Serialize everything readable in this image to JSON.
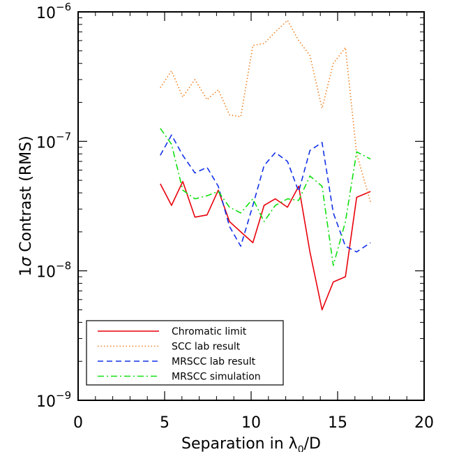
{
  "chart_data": {
    "type": "line",
    "xlabel": "Separation in λ",
    "xlabel_sub": "0",
    "xlabel_suffix": "/D",
    "ylabel_prefix": "1",
    "ylabel_sigma": "σ",
    "ylabel_suffix": " Contrast (RMS)",
    "xlim": [
      0,
      20
    ],
    "ylim": [
      1e-09,
      1e-06
    ],
    "yscale": "log",
    "grid": false,
    "legend_position": "bottom-left",
    "x_ticks": [
      {
        "value": 0,
        "label": "0"
      },
      {
        "value": 5,
        "label": "5"
      },
      {
        "value": 10,
        "label": "10"
      },
      {
        "value": 15,
        "label": "15"
      },
      {
        "value": 20,
        "label": "20"
      }
    ],
    "y_ticks": [
      {
        "value": 1e-09,
        "base": "10",
        "exp": "−9"
      },
      {
        "value": 1e-08,
        "base": "10",
        "exp": "−8"
      },
      {
        "value": 1e-07,
        "base": "10",
        "exp": "−7"
      },
      {
        "value": 1e-06,
        "base": "10",
        "exp": "−6"
      }
    ],
    "series": [
      {
        "name": "Chromatic limit",
        "color": "#e8000b",
        "dash": "solid",
        "x": [
          4.75,
          5.4,
          6.05,
          6.75,
          7.45,
          8.1,
          8.75,
          9.4,
          10.1,
          10.75,
          11.4,
          12.1,
          12.75,
          13.4,
          14.1,
          14.75,
          15.45,
          16.1,
          16.9
        ],
        "y": [
          4.7e-08,
          3.2e-08,
          4.9e-08,
          2.6e-08,
          2.7e-08,
          4.2e-08,
          2.4e-08,
          2e-08,
          1.65e-08,
          3.2e-08,
          3.6e-08,
          3.1e-08,
          4.5e-08,
          1.4e-08,
          5e-09,
          8.2e-09,
          9e-09,
          3.7e-08,
          4.1e-08
        ]
      },
      {
        "name": "SCC lab result",
        "color": "#f08020",
        "dash": "dotted",
        "x": [
          4.75,
          5.4,
          6.05,
          6.75,
          7.45,
          8.1,
          8.75,
          9.4,
          10.1,
          10.75,
          11.4,
          12.1,
          12.75,
          13.4,
          14.1,
          14.75,
          15.45,
          16.1,
          16.9
        ],
        "y": [
          2.6e-07,
          3.5e-07,
          2.2e-07,
          3e-07,
          2.1e-07,
          2.5e-07,
          1.6e-07,
          1.55e-07,
          5.5e-07,
          5.7e-07,
          7e-07,
          8.6e-07,
          6e-07,
          4.6e-07,
          1.8e-07,
          4e-07,
          5.3e-07,
          8e-08,
          3.4e-08
        ]
      },
      {
        "name": "MRSCC lab result",
        "color": "#1030e8",
        "dash": "dashed",
        "x": [
          4.75,
          5.4,
          6.05,
          6.75,
          7.45,
          8.1,
          8.75,
          9.4,
          10.1,
          10.75,
          11.4,
          12.1,
          12.75,
          13.4,
          14.1,
          14.75,
          15.45,
          16.1,
          16.9
        ],
        "y": [
          7.8e-08,
          1.12e-07,
          7.8e-08,
          5.7e-08,
          6.3e-08,
          4.5e-08,
          2.2e-08,
          1.55e-08,
          3.2e-08,
          6.5e-08,
          8.2e-08,
          7e-08,
          4.1e-08,
          8.5e-08,
          9.8e-08,
          2.8e-08,
          1.55e-08,
          1.4e-08,
          1.65e-08
        ]
      },
      {
        "name": "MRSCC simulation",
        "color": "#10e010",
        "dash": "dashdot",
        "x": [
          4.75,
          5.4,
          6.05,
          6.75,
          7.45,
          8.1,
          8.75,
          9.4,
          10.1,
          10.75,
          11.4,
          12.1,
          12.75,
          13.4,
          14.1,
          14.75,
          15.45,
          16.1,
          16.9
        ],
        "y": [
          1.26e-07,
          9.5e-08,
          4.2e-08,
          3.6e-08,
          3.8e-08,
          4.1e-08,
          3.1e-08,
          2.8e-08,
          3.6e-08,
          2.4e-08,
          3.2e-08,
          3.6e-08,
          3.5e-08,
          5.4e-08,
          4.5e-08,
          1.1e-08,
          2.4e-08,
          8.3e-08,
          7.3e-08
        ]
      }
    ]
  }
}
